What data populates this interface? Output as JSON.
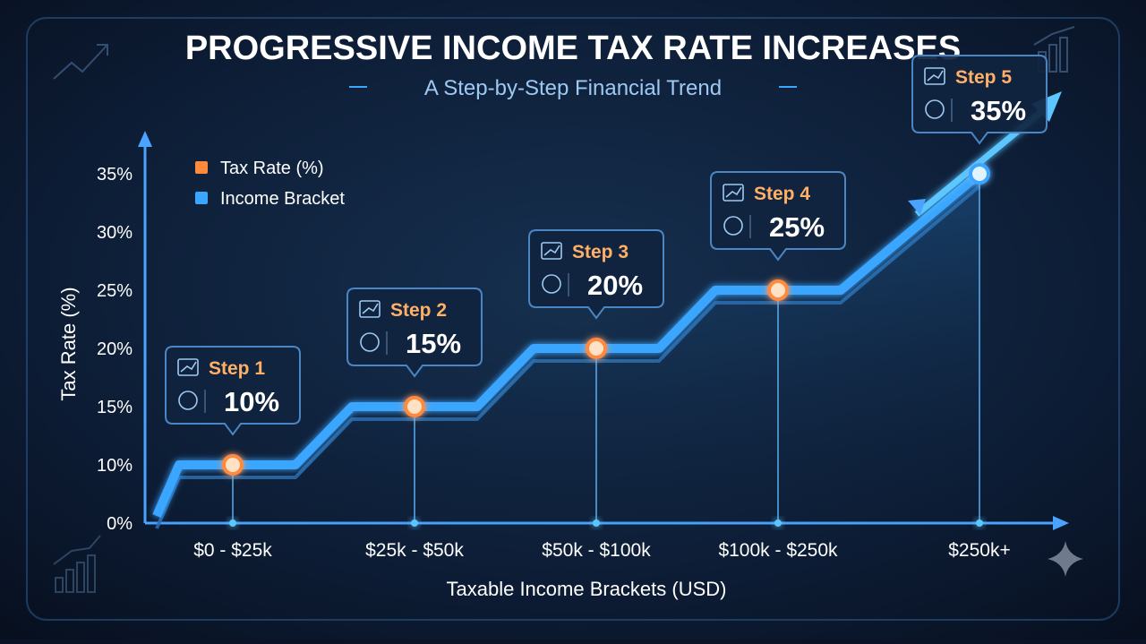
{
  "header": {
    "title": "PROGRESSIVE INCOME TAX RATE INCREASES",
    "subtitle": "A Step-by-Step Financial Trend"
  },
  "legend": {
    "placement": "top-left",
    "items": [
      {
        "label": "Tax Rate (%)",
        "color": "#ff8a3d"
      },
      {
        "label": "Income Bracket",
        "color": "#3aa6ff"
      }
    ]
  },
  "colors": {
    "background": "#0a1426",
    "accent_orange": "#ff8a3d",
    "accent_blue": "#3aa6ff",
    "text": "#ffffff"
  },
  "chart_data": {
    "type": "line",
    "title": "PROGRESSIVE INCOME TAX RATE INCREASES",
    "subtitle": "A Step-by-Step Financial Trend",
    "xlabel": "Taxable Income Brackets (USD)",
    "ylabel": "Tax Rate (%)",
    "ylim": [
      0,
      35
    ],
    "yticks": [
      "0%",
      "10%",
      "15%",
      "20%",
      "25%",
      "30%",
      "35%"
    ],
    "ytick_values": [
      0,
      10,
      15,
      20,
      25,
      30,
      35
    ],
    "categories": [
      "$0 - $25k",
      "$25k - $50k",
      "$50k - $100k",
      "$100k - $250k",
      "$250k+"
    ],
    "series": [
      {
        "name": "Tax Rate (%)",
        "values": [
          10,
          15,
          20,
          25,
          35
        ]
      }
    ],
    "callouts": [
      {
        "step": "Step 1",
        "value": "10%",
        "icon": "growth-chart-icon"
      },
      {
        "step": "Step 2",
        "value": "15%",
        "icon": "money-stack-icon"
      },
      {
        "step": "Step 3",
        "value": "20%",
        "icon": "coins-icon"
      },
      {
        "step": "Step 4",
        "value": "25%",
        "icon": "coins-icon"
      },
      {
        "step": "Step 5",
        "value": "35%",
        "icon": "hierarchy-icon"
      }
    ],
    "grid": false
  }
}
